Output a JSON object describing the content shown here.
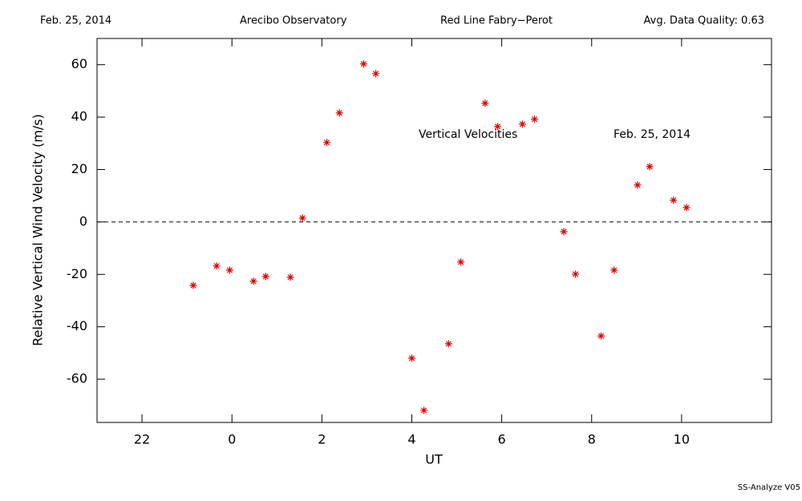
{
  "header": {
    "date": "Feb. 25, 2014",
    "site": "Arecibo Observatory",
    "instrument": "Red Line Fabry−Perot",
    "quality": "Avg. Data Quality: 0.63"
  },
  "footer": "SS-Analyze V05",
  "chart_data": {
    "type": "scatter",
    "xlabel": "UT",
    "ylabel": "Relative Vertical Wind Velocity (m/s)",
    "annotations": [
      "Vertical Velocities",
      "Feb. 25, 2014"
    ],
    "xlim": [
      -3,
      12
    ],
    "ylim": [
      -76.5,
      70
    ],
    "xticks": [
      {
        "value": -2,
        "label": "22"
      },
      0,
      2,
      4,
      6,
      8,
      10
    ],
    "yticks": [
      -60,
      -40,
      -20,
      0,
      20,
      40,
      60
    ],
    "reference_line": 0,
    "series": [
      {
        "name": "Vertical Velocities",
        "color": "#e00000",
        "x": [
          -0.86,
          -0.34,
          -0.05,
          0.48,
          0.75,
          1.3,
          1.57,
          2.11,
          2.39,
          2.93,
          3.2,
          4.0,
          4.27,
          4.82,
          5.09,
          5.63,
          5.91,
          6.46,
          6.73,
          7.38,
          7.64,
          8.21,
          8.5,
          9.02,
          9.29,
          9.82,
          10.11
        ],
        "values": [
          -24.2,
          -16.8,
          -18.4,
          -22.6,
          -20.8,
          -21.1,
          1.5,
          30.3,
          41.6,
          60.3,
          56.6,
          -52.0,
          -71.9,
          -46.5,
          -15.3,
          45.3,
          36.4,
          37.3,
          39.2,
          -3.7,
          -19.9,
          -43.5,
          -18.4,
          14.1,
          21.1,
          8.3,
          5.5
        ]
      }
    ]
  }
}
